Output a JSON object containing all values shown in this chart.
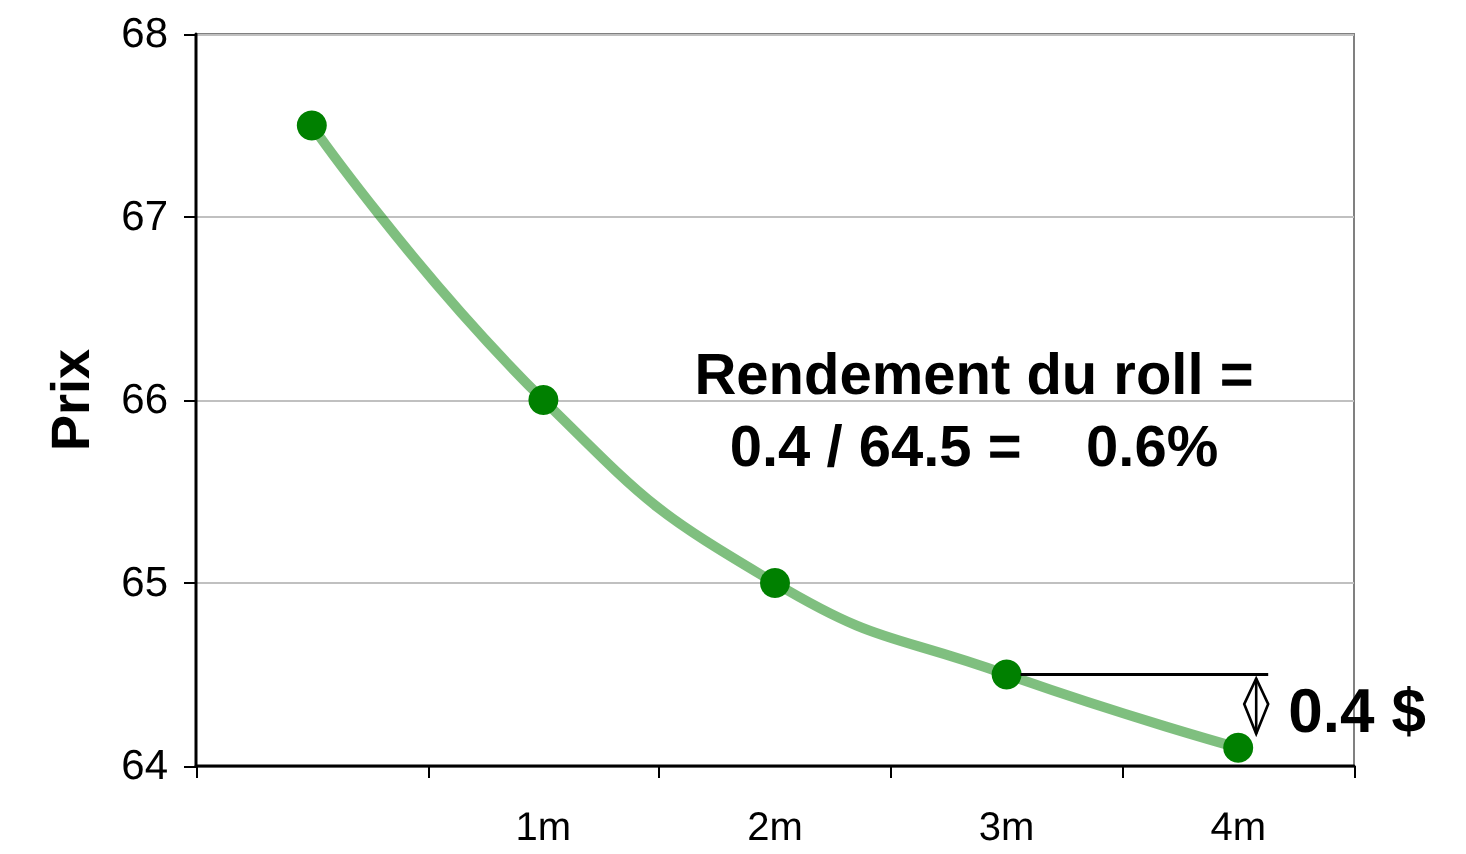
{
  "chart_data": {
    "type": "line",
    "ylabel": "Prix",
    "categories": [
      null,
      "1m",
      "2m",
      "3m",
      "4m"
    ],
    "series": [
      {
        "color": "#008000",
        "values": [
          67.5,
          66.0,
          65.0,
          64.5,
          64.1
        ]
      }
    ],
    "ylim": [
      64,
      68
    ],
    "yticks": [
      64,
      65,
      66,
      67,
      68
    ],
    "grid": "y",
    "marker": "circle",
    "annotations": [
      "Rendement du roll =\n0.4 / 64.5 =    0.6%",
      {
        "text": "0.4 $",
        "x": "3m",
        "y": 64.5
      }
    ]
  }
}
